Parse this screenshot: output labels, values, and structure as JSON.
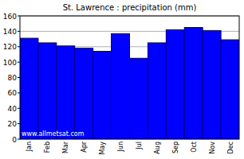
{
  "chart_data": {
    "type": "bar",
    "title": "St. Lawrence : precipitation (mm)",
    "categories": [
      "Jan",
      "Feb",
      "Mar",
      "Apr",
      "May",
      "Jun",
      "Jul",
      "Aug",
      "Sep",
      "Oct",
      "Nov",
      "Dec"
    ],
    "values": [
      131,
      125,
      121,
      118,
      114,
      137,
      105,
      125,
      142,
      145,
      141,
      129
    ],
    "color": "#0000ff",
    "ylim": [
      0,
      160
    ],
    "yticks": [
      0,
      20,
      40,
      60,
      80,
      100,
      120,
      140,
      160
    ],
    "grid": true,
    "annotation": "www.allmetsat.com"
  }
}
